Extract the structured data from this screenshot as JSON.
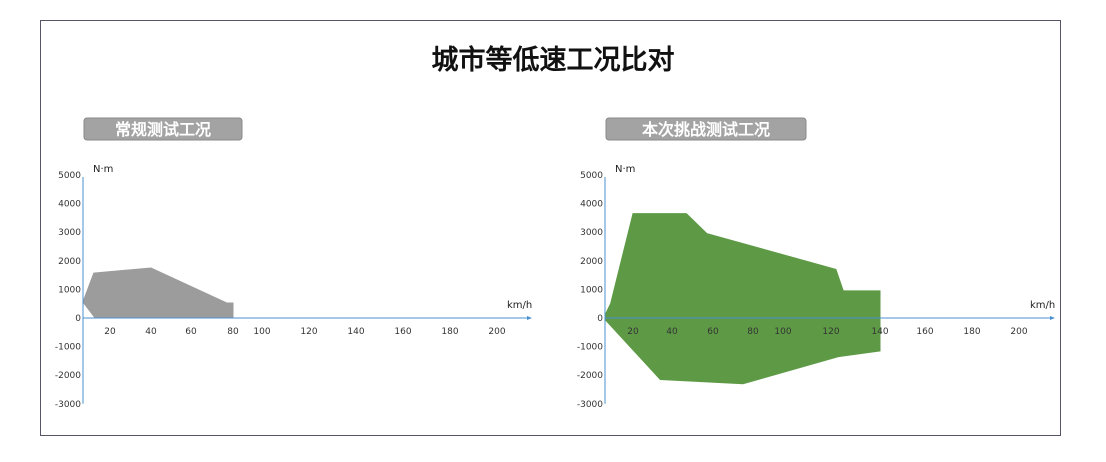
{
  "title": "城市等低速工况比对",
  "colors": {
    "gray_fill": "#9c9c9c",
    "green_fill": "#5e9a46",
    "axis": "#4a90d0",
    "label_box": "#a3a3a3"
  },
  "chart_data": [
    {
      "type": "area",
      "title": "常规测试工况",
      "ylabel": "N·m",
      "xlabel": "km/h",
      "yticks": [
        "5000",
        "4000",
        "3000",
        "2000",
        "1000",
        "0",
        "-1000",
        "-2000",
        "-3000"
      ],
      "xticks": [
        "20",
        "40",
        "60",
        "80",
        "100",
        "120",
        "140",
        "160",
        "180",
        "200"
      ],
      "ylim": [
        -3000,
        5000
      ],
      "xlim": [
        0,
        200
      ],
      "polygon": [
        [
          0,
          560
        ],
        [
          8,
          1570
        ],
        [
          40,
          1750
        ],
        [
          77,
          525
        ],
        [
          80,
          525
        ],
        [
          80,
          0
        ],
        [
          9,
          0
        ]
      ]
    },
    {
      "type": "area",
      "title": "本次挑战测试工况",
      "ylabel": "N·m",
      "xlabel": "km/h",
      "yticks": [
        "5000",
        "4000",
        "3000",
        "2000",
        "1000",
        "0",
        "-1000",
        "-2000",
        "-3000"
      ],
      "xticks": [
        "20",
        "40",
        "60",
        "80",
        "100",
        "120",
        "140",
        "160",
        "180",
        "200"
      ],
      "ylim": [
        -3000,
        5000
      ],
      "xlim": [
        0,
        200
      ],
      "polygon": [
        [
          0,
          100
        ],
        [
          4,
          500
        ],
        [
          20,
          3650
        ],
        [
          47,
          3650
        ],
        [
          57,
          2950
        ],
        [
          122,
          1700
        ],
        [
          125,
          950
        ],
        [
          140,
          950
        ],
        [
          140,
          -1150
        ],
        [
          123,
          -1350
        ],
        [
          75,
          -2300
        ],
        [
          34,
          -2150
        ],
        [
          0,
          -50
        ]
      ]
    }
  ]
}
